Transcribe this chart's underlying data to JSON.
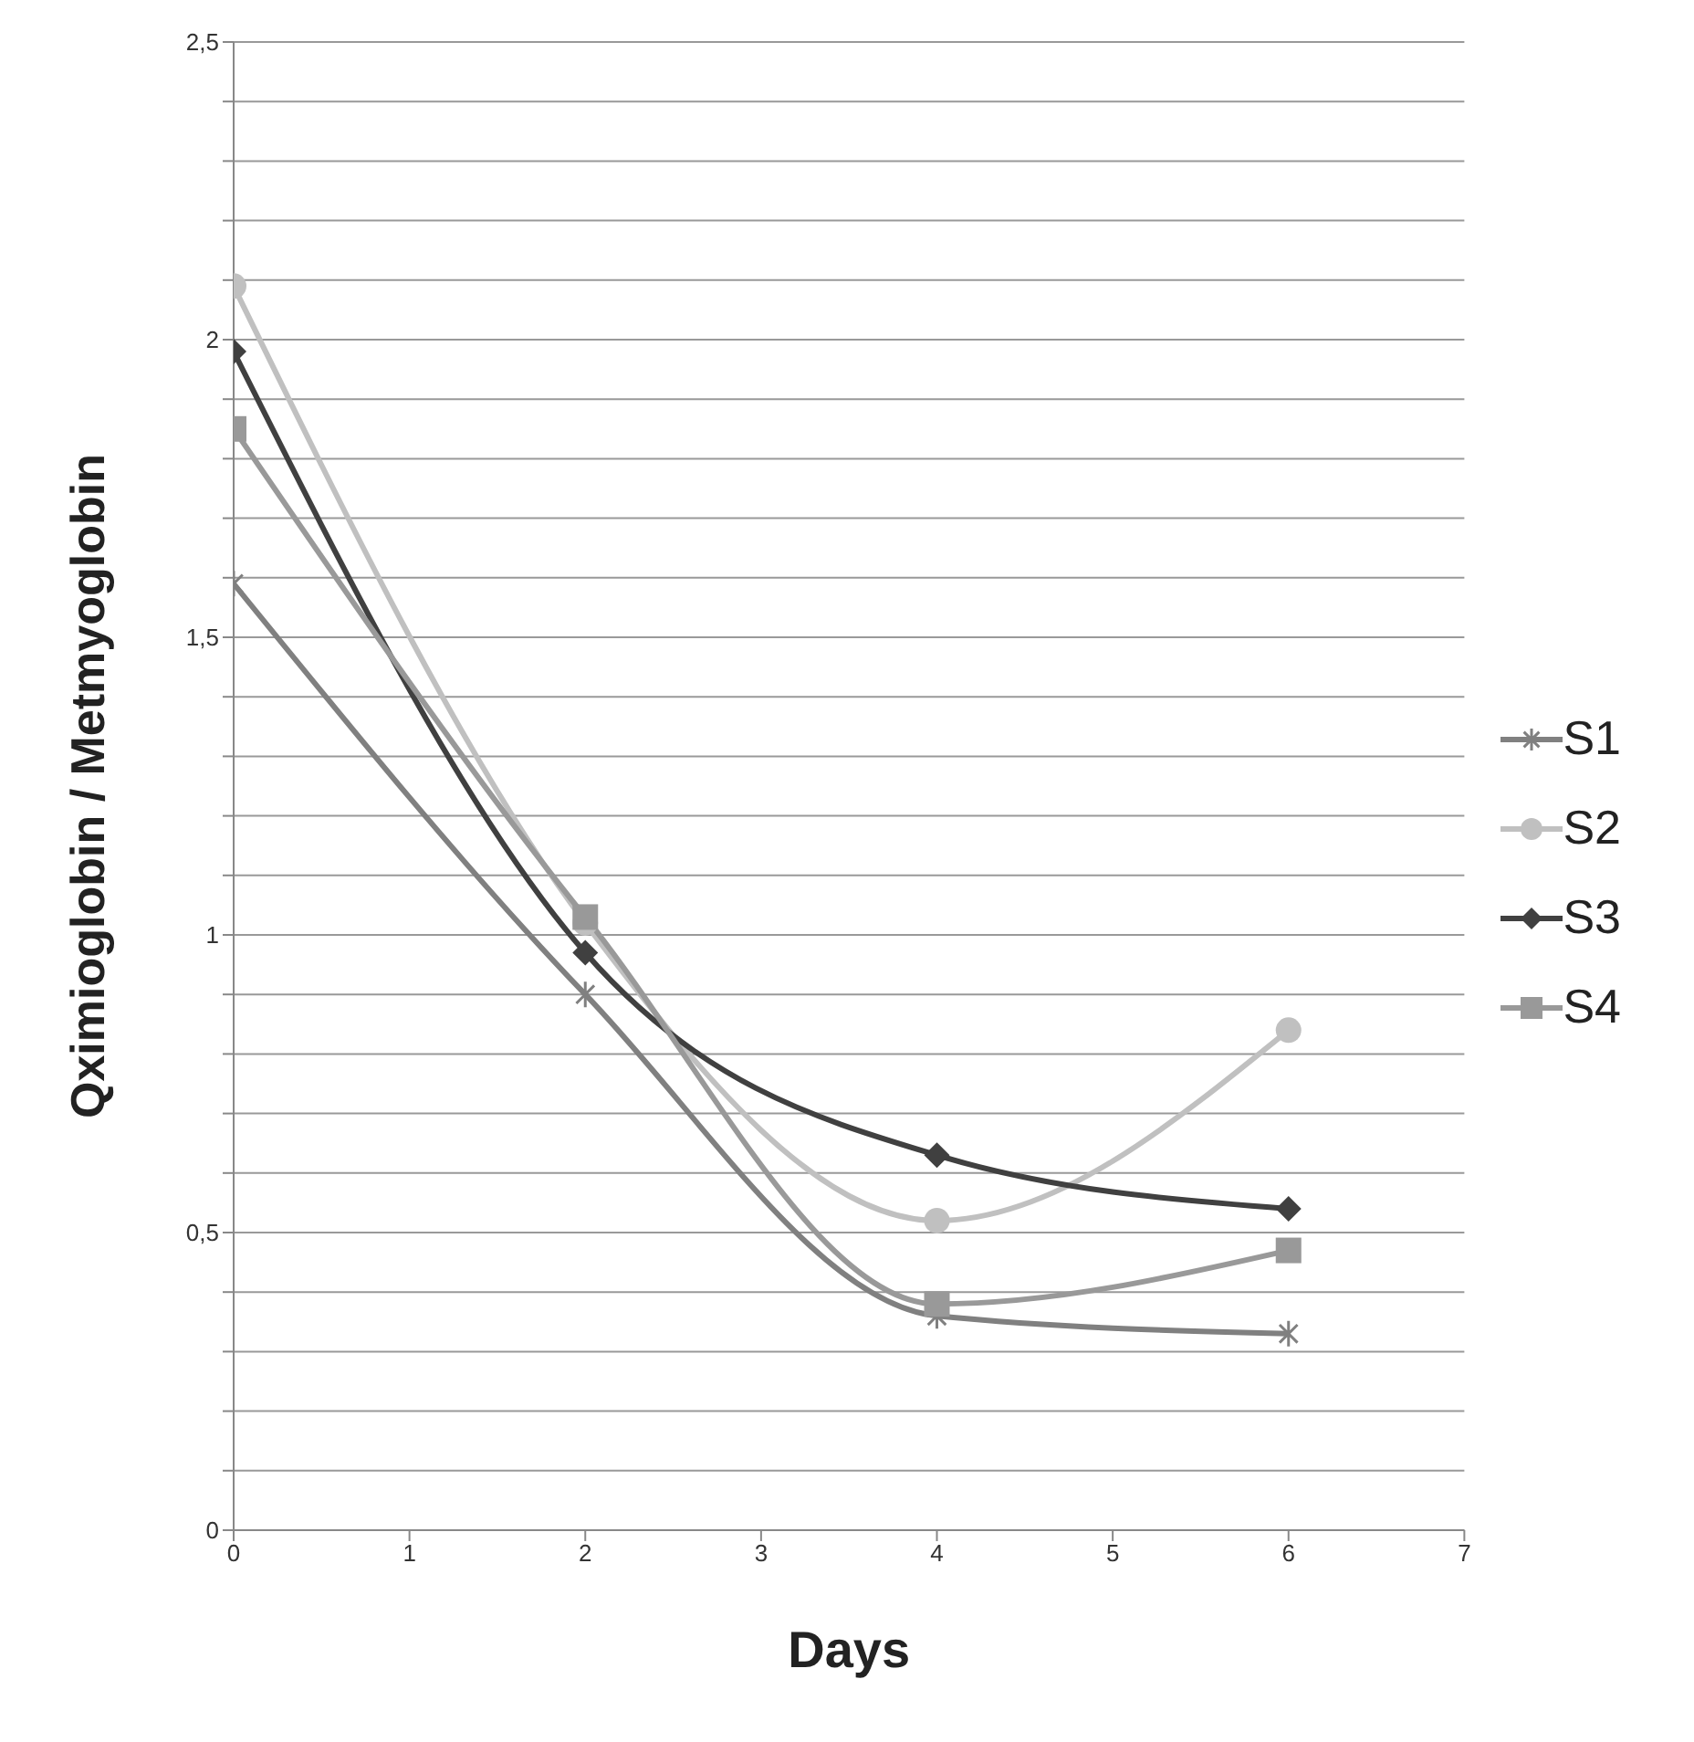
{
  "chart_data": {
    "type": "line",
    "xlabel": "Days",
    "ylabel": "Qximioglobin / Metmyoglobin",
    "x": [
      0,
      2,
      4,
      6
    ],
    "series": [
      {
        "name": "S1",
        "color": "#808080",
        "marker": "cross",
        "values": [
          1.59,
          0.9,
          0.36,
          0.33
        ]
      },
      {
        "name": "S2",
        "color": "#c0c0c0",
        "marker": "circle",
        "values": [
          2.09,
          1.02,
          0.52,
          0.84
        ]
      },
      {
        "name": "S3",
        "color": "#404040",
        "marker": "diamond",
        "values": [
          1.98,
          0.97,
          0.63,
          0.54
        ]
      },
      {
        "name": "S4",
        "color": "#999999",
        "marker": "square",
        "values": [
          1.85,
          1.03,
          0.38,
          0.47
        ]
      }
    ],
    "xlim": [
      0,
      7
    ],
    "xticks": [
      0,
      1,
      2,
      3,
      4,
      5,
      6,
      7
    ],
    "ylim": [
      0,
      2.5
    ],
    "yticks": [
      0,
      {
        "value": 0.1,
        "label": null
      },
      {
        "value": 0.2,
        "label": null
      },
      {
        "value": 0.3,
        "label": null
      },
      {
        "value": 0.4,
        "label": null
      },
      {
        "value": 0.5,
        "label": "0,5"
      },
      {
        "value": 0.6,
        "label": null
      },
      {
        "value": 0.7,
        "label": null
      },
      {
        "value": 0.8,
        "label": null
      },
      {
        "value": 0.9,
        "label": null
      },
      1,
      {
        "value": 1.1,
        "label": null
      },
      {
        "value": 1.2,
        "label": null
      },
      {
        "value": 1.3,
        "label": null
      },
      {
        "value": 1.4,
        "label": null
      },
      {
        "value": 1.5,
        "label": "1,5"
      },
      {
        "value": 1.6,
        "label": null
      },
      {
        "value": 1.7,
        "label": null
      },
      {
        "value": 1.8,
        "label": null
      },
      {
        "value": 1.9,
        "label": null
      },
      2,
      {
        "value": 2.1,
        "label": null
      },
      {
        "value": 2.2,
        "label": null
      },
      {
        "value": 2.3,
        "label": null
      },
      {
        "value": 2.4,
        "label": null
      },
      {
        "value": 2.5,
        "label": "2,5"
      }
    ],
    "grid": "y",
    "legend": "right",
    "line_style": "solid"
  }
}
